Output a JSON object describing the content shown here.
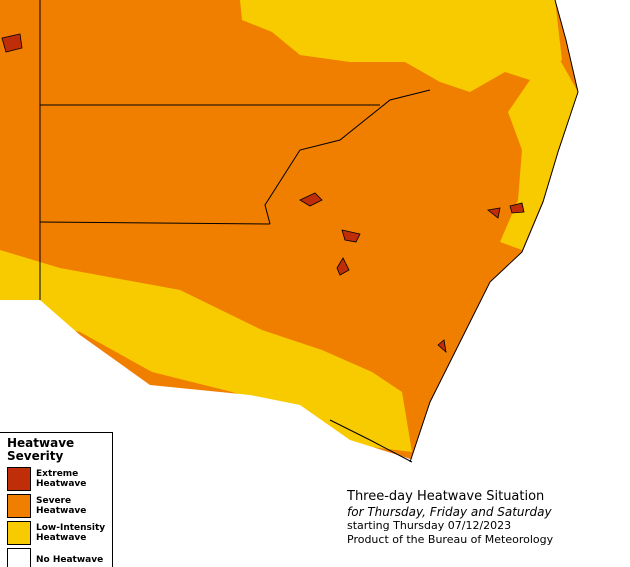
{
  "legend": {
    "title": "Heatwave Severity",
    "items": [
      {
        "label": "Extreme Heatwave",
        "color": "#bf2e08"
      },
      {
        "label": "Severe Heatwave",
        "color": "#f07f00"
      },
      {
        "label": "Low-Intensity Heatwave",
        "color": "#f7cb00"
      },
      {
        "label": "No Heatwave",
        "color": "#ffffff"
      }
    ]
  },
  "info": {
    "title": "Three-day Heatwave Situation",
    "subtitle": "for Thursday, Friday and Saturday",
    "date": "starting Thursday 07/12/2023",
    "credit": "Product of the Bureau of Meteorology"
  }
}
